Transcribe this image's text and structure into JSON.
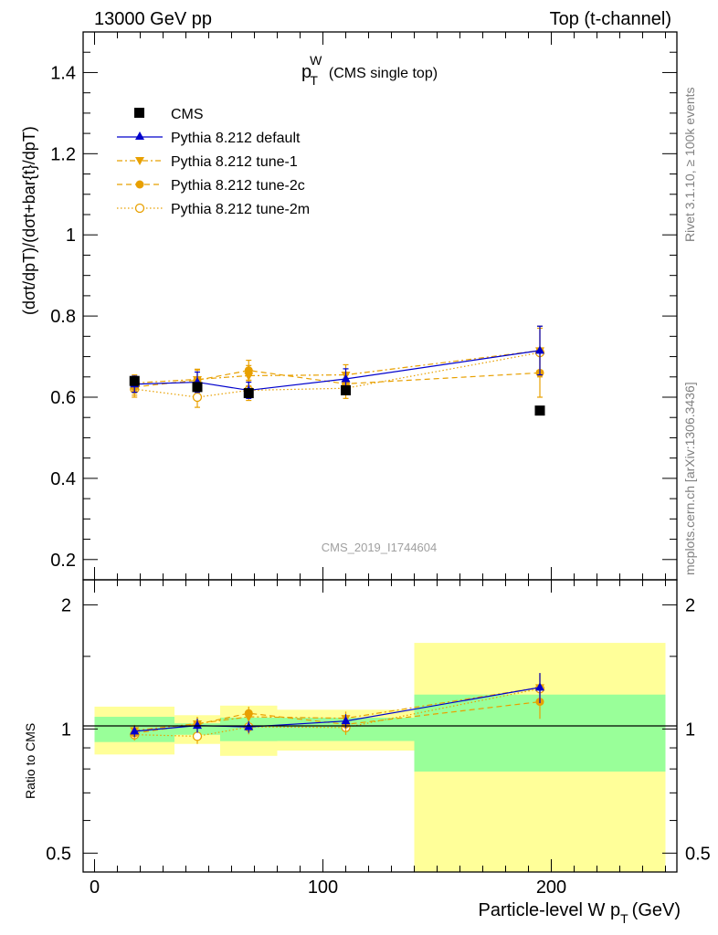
{
  "header": {
    "left": "13000 GeV pp",
    "right": "Top (t-channel)"
  },
  "plot_title": {
    "main": "p",
    "sub": "T",
    "sup": "W",
    "extra": "(CMS single top)"
  },
  "side_labels": {
    "rivet": "Rivet 3.1.10, ≥ 100k events",
    "mcplots": "mcplots.cern.ch [arXiv:1306.3436]"
  },
  "watermark": "CMS_2019_I1744604",
  "axes": {
    "ylabel_main": "(dσt/dpT)/(dσt+bar{t}/dpT)",
    "ylabel_ratio": "Ratio to CMS",
    "xlabel": "Particle-level W pT (GeV)",
    "xlabel_main": "Particle-level W p",
    "xlabel_sub": "T",
    "xlabel_end": "(GeV)",
    "xticks": [
      "0",
      "100",
      "200"
    ],
    "yticks_main": [
      "0.2",
      "0.4",
      "0.6",
      "0.8",
      "1",
      "1.2",
      "1.4"
    ],
    "yticks_ratio": [
      "0.5",
      "1",
      "2"
    ]
  },
  "legend": {
    "cms": "CMS",
    "default": "Pythia 8.212 default",
    "tune1": "Pythia 8.212 tune-1",
    "tune2c": "Pythia 8.212 tune-2c",
    "tune2m": "Pythia 8.212 tune-2m"
  },
  "colors": {
    "data": "#000000",
    "default": "#0000cc",
    "tunes": "#e8a000",
    "band_inner": "#99ff99",
    "band_outer": "#ffff99"
  },
  "chart_data": {
    "type": "scatter",
    "title": "pT W (CMS single top)",
    "xlabel": "Particle-level W pT (GeV)",
    "ylabel": "(dσt/dpT)/(dσt+bar{t}/dpT)",
    "xlim": [
      -5,
      255
    ],
    "ylim": [
      0.15,
      1.5
    ],
    "ratio_ylim": [
      0.45,
      2.3
    ],
    "x": [
      17.5,
      45,
      67.5,
      110,
      195
    ],
    "bins": [
      [
        0,
        35
      ],
      [
        35,
        55
      ],
      [
        55,
        80
      ],
      [
        80,
        140
      ],
      [
        140,
        250
      ]
    ],
    "data": {
      "name": "CMS",
      "values": [
        0.64,
        0.625,
        0.61,
        0.617,
        0.567
      ],
      "stat_err": [
        0.045,
        0.02,
        0.04,
        0.04,
        0.12
      ],
      "total_err": [
        0.085,
        0.05,
        0.085,
        0.07,
        0.35
      ]
    },
    "series": [
      {
        "name": "Pythia 8.212 default",
        "values": [
          0.632,
          0.637,
          0.617,
          0.645,
          0.715
        ],
        "errors": [
          0.02,
          0.025,
          0.02,
          0.025,
          0.06
        ]
      },
      {
        "name": "Pythia 8.212 tune-1",
        "values": [
          0.635,
          0.644,
          0.653,
          0.655,
          0.715
        ],
        "errors": [
          0.02,
          0.025,
          0.025,
          0.025,
          0.06
        ]
      },
      {
        "name": "Pythia 8.212 tune-2c",
        "values": [
          0.625,
          0.642,
          0.666,
          0.633,
          0.66
        ],
        "errors": [
          0.02,
          0.025,
          0.025,
          0.025,
          0.06
        ]
      },
      {
        "name": "Pythia 8.212 tune-2m",
        "values": [
          0.62,
          0.6,
          0.617,
          0.622,
          0.71
        ],
        "errors": [
          0.02,
          0.025,
          0.025,
          0.025,
          0.06
        ]
      }
    ]
  }
}
